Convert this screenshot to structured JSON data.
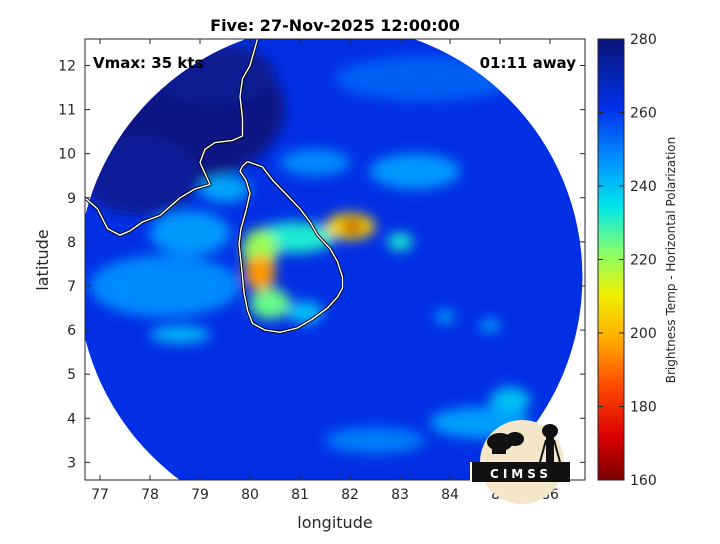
{
  "chart_data": {
    "type": "heatmap",
    "title": "Five: 27-Nov-2025 12:00:00",
    "xlabel": "longitude",
    "ylabel": "latitude",
    "xlim": [
      76.7,
      86.7
    ],
    "ylim": [
      2.6,
      12.6
    ],
    "xticks": [
      77,
      78,
      79,
      80,
      81,
      82,
      83,
      84,
      85,
      86
    ],
    "yticks": [
      3,
      4,
      5,
      6,
      7,
      8,
      9,
      10,
      11,
      12
    ],
    "annotations": {
      "vmax": "Vmax: 35 kts",
      "away": "01:11 away"
    },
    "colorbar": {
      "label": "Brightness Temp - Horizontal Polarization",
      "min": 160,
      "max": 280,
      "ticks": [
        160,
        180,
        200,
        220,
        240,
        260,
        280
      ]
    },
    "swath": {
      "center": [
        81.6,
        7.2
      ],
      "radius_deg": 5.05
    },
    "field": {
      "background": 262,
      "features": [
        {
          "lon": 78.3,
          "lat": 11.0,
          "rx": 2.4,
          "ry": 1.7,
          "value": 278
        },
        {
          "lon": 77.8,
          "lat": 9.5,
          "rx": 1.2,
          "ry": 0.9,
          "value": 275
        },
        {
          "lon": 79.3,
          "lat": 11.8,
          "rx": 1.2,
          "ry": 0.7,
          "value": 276
        },
        {
          "lon": 78.3,
          "lat": 7.0,
          "rx": 1.5,
          "ry": 0.7,
          "value": 248
        },
        {
          "lon": 78.8,
          "lat": 8.2,
          "rx": 0.8,
          "ry": 0.5,
          "value": 246
        },
        {
          "lon": 79.5,
          "lat": 9.2,
          "rx": 0.5,
          "ry": 0.3,
          "value": 244
        },
        {
          "lon": 83.5,
          "lat": 11.7,
          "rx": 1.8,
          "ry": 0.5,
          "value": 254
        },
        {
          "lon": 81.3,
          "lat": 9.8,
          "rx": 0.7,
          "ry": 0.3,
          "value": 248
        },
        {
          "lon": 83.3,
          "lat": 9.6,
          "rx": 0.9,
          "ry": 0.4,
          "value": 246
        },
        {
          "lon": 80.9,
          "lat": 8.1,
          "rx": 0.8,
          "ry": 0.35,
          "value": 232
        },
        {
          "lon": 82.0,
          "lat": 8.35,
          "rx": 0.5,
          "ry": 0.3,
          "value": 205
        },
        {
          "lon": 82.05,
          "lat": 8.35,
          "rx": 0.2,
          "ry": 0.15,
          "value": 168
        },
        {
          "lon": 83.0,
          "lat": 8.0,
          "rx": 0.25,
          "ry": 0.2,
          "value": 232
        },
        {
          "lon": 80.2,
          "lat": 7.8,
          "rx": 0.35,
          "ry": 0.5,
          "value": 220
        },
        {
          "lon": 80.2,
          "lat": 7.3,
          "rx": 0.3,
          "ry": 0.4,
          "value": 196
        },
        {
          "lon": 80.4,
          "lat": 6.6,
          "rx": 0.4,
          "ry": 0.35,
          "value": 225
        },
        {
          "lon": 81.1,
          "lat": 6.4,
          "rx": 0.35,
          "ry": 0.25,
          "value": 240
        },
        {
          "lon": 78.6,
          "lat": 5.9,
          "rx": 0.6,
          "ry": 0.2,
          "value": 242
        },
        {
          "lon": 85.2,
          "lat": 4.4,
          "rx": 0.4,
          "ry": 0.3,
          "value": 240
        },
        {
          "lon": 84.6,
          "lat": 3.9,
          "rx": 1.0,
          "ry": 0.35,
          "value": 245
        },
        {
          "lon": 82.5,
          "lat": 3.5,
          "rx": 1.0,
          "ry": 0.3,
          "value": 250
        },
        {
          "lon": 84.8,
          "lat": 6.1,
          "rx": 0.2,
          "ry": 0.15,
          "value": 245
        },
        {
          "lon": 83.9,
          "lat": 6.3,
          "rx": 0.2,
          "ry": 0.15,
          "value": 245
        }
      ]
    },
    "coastlines": [
      {
        "name": "Sri Lanka",
        "points": [
          [
            79.95,
            9.82
          ],
          [
            80.25,
            9.7
          ],
          [
            80.45,
            9.4
          ],
          [
            80.75,
            9.05
          ],
          [
            81.0,
            8.75
          ],
          [
            81.2,
            8.45
          ],
          [
            81.35,
            8.15
          ],
          [
            81.6,
            7.85
          ],
          [
            81.75,
            7.55
          ],
          [
            81.85,
            7.2
          ],
          [
            81.85,
            6.95
          ],
          [
            81.75,
            6.75
          ],
          [
            81.55,
            6.5
          ],
          [
            81.25,
            6.25
          ],
          [
            80.95,
            6.05
          ],
          [
            80.6,
            5.95
          ],
          [
            80.3,
            6.0
          ],
          [
            80.05,
            6.15
          ],
          [
            79.95,
            6.45
          ],
          [
            79.88,
            6.85
          ],
          [
            79.85,
            7.2
          ],
          [
            79.82,
            7.55
          ],
          [
            79.78,
            7.95
          ],
          [
            79.82,
            8.3
          ],
          [
            79.92,
            8.7
          ],
          [
            80.0,
            9.1
          ],
          [
            79.92,
            9.4
          ],
          [
            79.8,
            9.6
          ],
          [
            79.85,
            9.72
          ],
          [
            79.95,
            9.82
          ]
        ]
      },
      {
        "name": "India",
        "points": [
          [
            76.7,
            9.0
          ],
          [
            76.95,
            8.75
          ],
          [
            77.15,
            8.3
          ],
          [
            77.4,
            8.15
          ],
          [
            77.6,
            8.25
          ],
          [
            77.85,
            8.45
          ],
          [
            78.2,
            8.6
          ],
          [
            78.6,
            9.0
          ],
          [
            78.9,
            9.2
          ],
          [
            79.2,
            9.3
          ],
          [
            79.0,
            9.8
          ],
          [
            79.1,
            10.1
          ],
          [
            79.3,
            10.25
          ],
          [
            79.65,
            10.3
          ],
          [
            79.85,
            10.4
          ],
          [
            79.85,
            10.8
          ],
          [
            79.8,
            11.3
          ],
          [
            79.85,
            11.7
          ],
          [
            80.0,
            12.0
          ],
          [
            80.15,
            12.6
          ]
        ]
      }
    ]
  }
}
